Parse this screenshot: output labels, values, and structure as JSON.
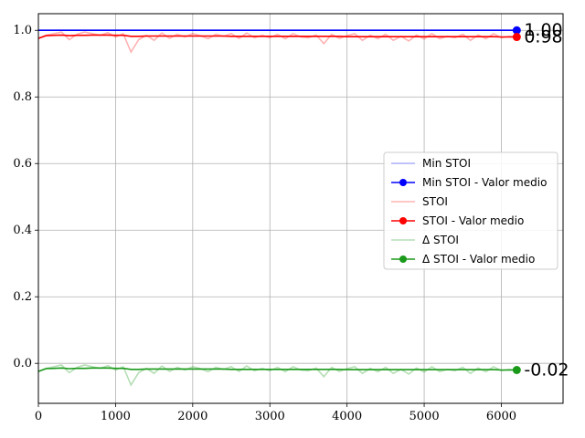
{
  "chart_data": {
    "type": "line",
    "title": "",
    "xlabel": "",
    "ylabel": "",
    "xlim": [
      0,
      6800
    ],
    "ylim": [
      -0.12,
      1.05
    ],
    "x_ticks": [
      0,
      1000,
      2000,
      3000,
      4000,
      5000,
      6000
    ],
    "x_tick_labels": [
      "0",
      "1000",
      "2000",
      "3000",
      "4000",
      "5000",
      "6000"
    ],
    "y_ticks": [
      0.0,
      0.2,
      0.4,
      0.6,
      0.8,
      1.0
    ],
    "y_tick_labels": [
      "0.0",
      "0.2",
      "0.4",
      "0.6",
      "0.8",
      "1.0"
    ],
    "grid": true,
    "legend_position": "center-right",
    "x": [
      0,
      100,
      200,
      300,
      400,
      500,
      600,
      700,
      800,
      900,
      1000,
      1100,
      1200,
      1300,
      1400,
      1500,
      1600,
      1700,
      1800,
      1900,
      2000,
      2100,
      2200,
      2300,
      2400,
      2500,
      2600,
      2700,
      2800,
      2900,
      3000,
      3100,
      3200,
      3300,
      3400,
      3500,
      3600,
      3700,
      3800,
      3900,
      4000,
      4100,
      4200,
      4300,
      4400,
      4500,
      4600,
      4700,
      4800,
      4900,
      5000,
      5100,
      5200,
      5300,
      5400,
      5500,
      5600,
      5700,
      5800,
      5900,
      6000,
      6100,
      6200
    ],
    "series": [
      {
        "name": "Min STOI",
        "color": "#0000ff",
        "opacity": 0.3,
        "values": [
          1.0,
          1.0,
          1.0,
          1.0,
          1.0,
          1.0,
          1.0,
          1.0,
          1.0,
          1.0,
          1.0,
          1.0,
          1.0,
          1.0,
          1.0,
          1.0,
          1.0,
          1.0,
          1.0,
          1.0,
          1.0,
          1.0,
          1.0,
          1.0,
          1.0,
          1.0,
          1.0,
          1.0,
          1.0,
          1.0,
          1.0,
          1.0,
          1.0,
          1.0,
          1.0,
          1.0,
          1.0,
          1.0,
          1.0,
          1.0,
          1.0,
          1.0,
          1.0,
          1.0,
          1.0,
          1.0,
          1.0,
          1.0,
          1.0,
          1.0,
          1.0,
          1.0,
          1.0,
          1.0,
          1.0,
          1.0,
          1.0,
          1.0,
          1.0,
          1.0,
          1.0,
          1.0,
          1.0
        ]
      },
      {
        "name": "Min STOI - Valor medio",
        "color": "#0000ff",
        "opacity": 1.0,
        "marker_end": true,
        "values": [
          1.0,
          1.0,
          1.0,
          1.0,
          1.0,
          1.0,
          1.0,
          1.0,
          1.0,
          1.0,
          1.0,
          1.0,
          1.0,
          1.0,
          1.0,
          1.0,
          1.0,
          1.0,
          1.0,
          1.0,
          1.0,
          1.0,
          1.0,
          1.0,
          1.0,
          1.0,
          1.0,
          1.0,
          1.0,
          1.0,
          1.0,
          1.0,
          1.0,
          1.0,
          1.0,
          1.0,
          1.0,
          1.0,
          1.0,
          1.0,
          1.0,
          1.0,
          1.0,
          1.0,
          1.0,
          1.0,
          1.0,
          1.0,
          1.0,
          1.0,
          1.0,
          1.0,
          1.0,
          1.0,
          1.0,
          1.0,
          1.0,
          1.0,
          1.0,
          1.0,
          1.0,
          1.0,
          1.0
        ]
      },
      {
        "name": "STOI",
        "color": "#ff0000",
        "opacity": 0.3,
        "values": [
          0.975,
          0.985,
          0.99,
          0.995,
          0.972,
          0.988,
          0.995,
          0.99,
          0.985,
          0.993,
          0.98,
          0.99,
          0.935,
          0.972,
          0.985,
          0.97,
          0.992,
          0.976,
          0.988,
          0.98,
          0.99,
          0.984,
          0.975,
          0.988,
          0.982,
          0.99,
          0.976,
          0.992,
          0.978,
          0.985,
          0.978,
          0.988,
          0.975,
          0.99,
          0.98,
          0.978,
          0.986,
          0.96,
          0.988,
          0.976,
          0.984,
          0.99,
          0.97,
          0.985,
          0.975,
          0.988,
          0.97,
          0.982,
          0.968,
          0.986,
          0.974,
          0.99,
          0.975,
          0.982,
          0.978,
          0.988,
          0.97,
          0.986,
          0.975,
          0.99,
          0.978,
          0.982,
          0.98
        ]
      },
      {
        "name": "STOI - Valor medio",
        "color": "#ff0000",
        "opacity": 1.0,
        "marker_end": true,
        "values": [
          0.976,
          0.984,
          0.985,
          0.986,
          0.984,
          0.985,
          0.985,
          0.986,
          0.986,
          0.986,
          0.985,
          0.985,
          0.982,
          0.982,
          0.983,
          0.983,
          0.983,
          0.983,
          0.983,
          0.983,
          0.983,
          0.983,
          0.983,
          0.983,
          0.983,
          0.982,
          0.982,
          0.982,
          0.982,
          0.982,
          0.982,
          0.982,
          0.982,
          0.982,
          0.982,
          0.982,
          0.982,
          0.982,
          0.982,
          0.982,
          0.981,
          0.981,
          0.981,
          0.981,
          0.981,
          0.981,
          0.981,
          0.981,
          0.981,
          0.981,
          0.981,
          0.981,
          0.981,
          0.981,
          0.981,
          0.981,
          0.981,
          0.981,
          0.981,
          0.981,
          0.98,
          0.98,
          0.98
        ]
      },
      {
        "name": "Δ STOI",
        "color": "#2ca02c",
        "opacity": 0.35,
        "values": [
          -0.025,
          -0.015,
          -0.01,
          -0.005,
          -0.028,
          -0.012,
          -0.005,
          -0.01,
          -0.015,
          -0.007,
          -0.02,
          -0.01,
          -0.065,
          -0.028,
          -0.015,
          -0.03,
          -0.008,
          -0.024,
          -0.012,
          -0.02,
          -0.01,
          -0.016,
          -0.025,
          -0.012,
          -0.018,
          -0.01,
          -0.024,
          -0.008,
          -0.022,
          -0.015,
          -0.022,
          -0.012,
          -0.025,
          -0.01,
          -0.02,
          -0.022,
          -0.014,
          -0.04,
          -0.012,
          -0.024,
          -0.016,
          -0.01,
          -0.03,
          -0.015,
          -0.025,
          -0.012,
          -0.03,
          -0.018,
          -0.032,
          -0.014,
          -0.026,
          -0.01,
          -0.025,
          -0.018,
          -0.022,
          -0.012,
          -0.03,
          -0.014,
          -0.025,
          -0.01,
          -0.022,
          -0.018,
          -0.02
        ]
      },
      {
        "name": "Δ STOI - Valor medio",
        "color": "#1a9a1a",
        "opacity": 1.0,
        "marker_end": true,
        "values": [
          -0.024,
          -0.016,
          -0.015,
          -0.014,
          -0.016,
          -0.015,
          -0.015,
          -0.014,
          -0.014,
          -0.014,
          -0.015,
          -0.015,
          -0.018,
          -0.018,
          -0.017,
          -0.017,
          -0.017,
          -0.017,
          -0.017,
          -0.017,
          -0.017,
          -0.017,
          -0.017,
          -0.017,
          -0.017,
          -0.018,
          -0.018,
          -0.018,
          -0.018,
          -0.018,
          -0.018,
          -0.018,
          -0.018,
          -0.018,
          -0.018,
          -0.018,
          -0.018,
          -0.018,
          -0.018,
          -0.018,
          -0.019,
          -0.019,
          -0.019,
          -0.019,
          -0.019,
          -0.019,
          -0.019,
          -0.019,
          -0.019,
          -0.019,
          -0.019,
          -0.019,
          -0.019,
          -0.019,
          -0.019,
          -0.019,
          -0.019,
          -0.019,
          -0.019,
          -0.019,
          -0.02,
          -0.02,
          -0.02
        ]
      }
    ],
    "end_labels": [
      {
        "text": "1.00",
        "value": 1.0,
        "series": "Min STOI - Valor medio"
      },
      {
        "text": "0.98",
        "value": 0.98,
        "series": "STOI - Valor medio"
      },
      {
        "text": "-0.02",
        "value": -0.02,
        "series": "Δ STOI - Valor medio"
      }
    ]
  }
}
